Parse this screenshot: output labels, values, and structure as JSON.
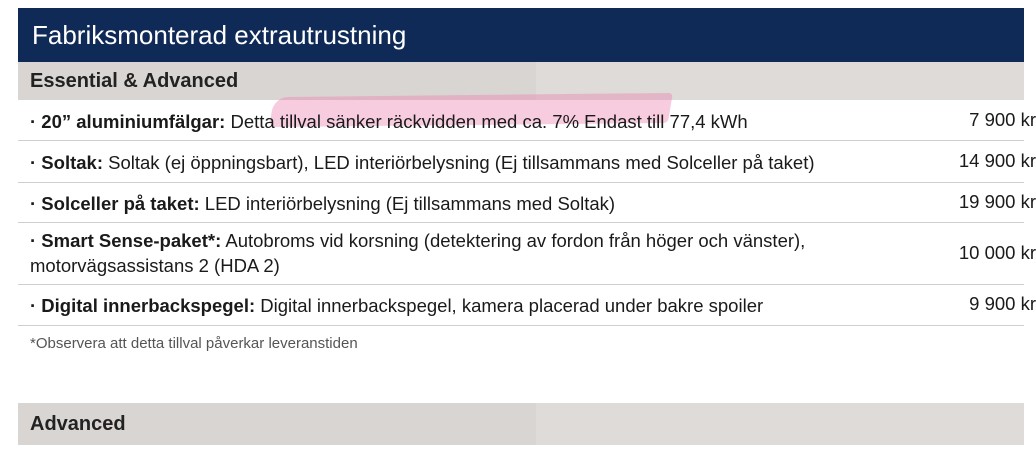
{
  "header": {
    "title": "Fabriksmonterad extrautrustning"
  },
  "sections": [
    {
      "label": "Essential & Advanced"
    },
    {
      "label": "Advanced"
    }
  ],
  "rows": [
    {
      "name": "· 20” aluminiumfälgar:",
      "text": " Detta tillval sänker räckvidden med ca. 7% Endast till 77,4 kWh",
      "price": "7 900 kr"
    },
    {
      "name": "· Soltak:",
      "text": " Soltak (ej öppningsbart), LED interiörbelysning (Ej tillsammans med Solceller på taket)",
      "price": "14 900 kr"
    },
    {
      "name": "· Solceller på taket:",
      "text": " LED interiörbelysning (Ej tillsammans med Soltak)",
      "price": "19 900 kr"
    },
    {
      "name": "· Smart Sense-paket*:",
      "text": " Autobroms vid korsning (detektering av fordon från höger och vänster), motorvägsassistans 2 (HDA 2)",
      "price": "10 000 kr"
    },
    {
      "name": "· Digital innerbackspegel:",
      "text": " Digital innerbackspegel, kamera placerad under bakre spoiler",
      "price": "9 900 kr"
    }
  ],
  "footnote": "*Observera att detta tillval påverkar leveranstiden",
  "colors": {
    "header_bg": "#0f2a57",
    "section_bg": "#d9d5d3",
    "highlight": "#ec78aa"
  }
}
